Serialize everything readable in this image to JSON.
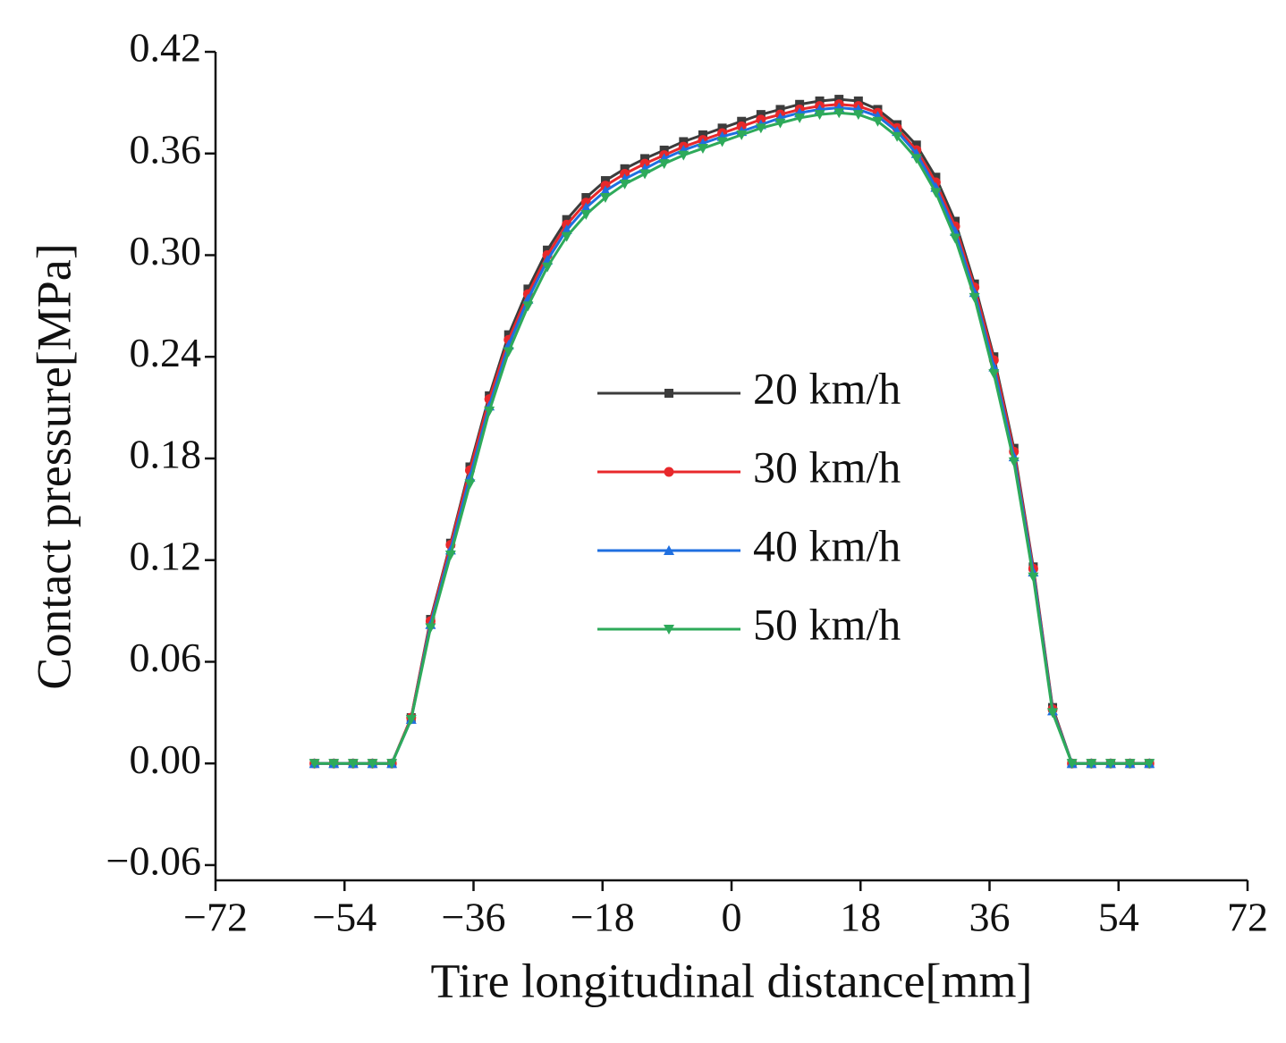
{
  "chart_data": {
    "type": "line",
    "xlabel": "Tire longitudinal distance[mm]",
    "ylabel": "Contact pressure[MPa]",
    "xlim": [
      -72,
      72
    ],
    "ylim": [
      -0.069,
      0.42
    ],
    "xticks": [
      {
        "value": -72,
        "label": "−72"
      },
      {
        "value": -54,
        "label": "−54"
      },
      {
        "value": -36,
        "label": "−36"
      },
      {
        "value": -18,
        "label": "−18"
      },
      0,
      18,
      36,
      54,
      72
    ],
    "yticks": [
      {
        "value": -0.06,
        "label": "−0.06"
      },
      {
        "value": 0,
        "label": "0.00"
      },
      0.06,
      0.12,
      0.18,
      0.24,
      {
        "value": 0.3,
        "label": "0.30"
      },
      0.36,
      0.42
    ],
    "x": [
      -58.2,
      -55.5,
      -52.8,
      -50.1,
      -47.4,
      -44.7,
      -42.0,
      -39.2,
      -36.5,
      -33.8,
      -31.1,
      -28.4,
      -25.7,
      -23.0,
      -20.3,
      -17.6,
      -14.9,
      -12.1,
      -9.4,
      -6.7,
      -4.0,
      -1.3,
      1.4,
      4.1,
      6.8,
      9.5,
      12.3,
      15.0,
      17.7,
      20.4,
      23.1,
      25.8,
      28.5,
      31.2,
      33.9,
      36.6,
      39.4,
      42.1,
      44.8,
      47.5,
      50.2,
      52.9,
      55.6,
      58.3
    ],
    "series": [
      {
        "name": "20 km/h",
        "color": "#3c3c3c",
        "marker": "square",
        "values": [
          0,
          0,
          0,
          0,
          0,
          0.027,
          0.085,
          0.13,
          0.175,
          0.217,
          0.253,
          0.28,
          0.303,
          0.321,
          0.334,
          0.344,
          0.351,
          0.357,
          0.362,
          0.367,
          0.371,
          0.375,
          0.379,
          0.383,
          0.386,
          0.389,
          0.391,
          0.392,
          0.391,
          0.386,
          0.377,
          0.365,
          0.346,
          0.32,
          0.283,
          0.24,
          0.186,
          0.116,
          0.033,
          0,
          0,
          0,
          0,
          0
        ]
      },
      {
        "name": "30 km/h",
        "color": "#e8282b",
        "marker": "circle",
        "values": [
          0,
          0,
          0,
          0,
          0,
          0.027,
          0.084,
          0.129,
          0.173,
          0.215,
          0.25,
          0.277,
          0.3,
          0.318,
          0.331,
          0.341,
          0.348,
          0.354,
          0.359,
          0.364,
          0.368,
          0.372,
          0.376,
          0.38,
          0.383,
          0.386,
          0.388,
          0.389,
          0.388,
          0.384,
          0.375,
          0.362,
          0.343,
          0.317,
          0.281,
          0.238,
          0.184,
          0.115,
          0.032,
          0,
          0,
          0,
          0,
          0
        ]
      },
      {
        "name": "40 km/h",
        "color": "#1f6fe0",
        "marker": "triangle-up",
        "values": [
          0,
          0,
          0,
          0,
          0,
          0.026,
          0.082,
          0.126,
          0.169,
          0.211,
          0.247,
          0.274,
          0.297,
          0.315,
          0.328,
          0.338,
          0.345,
          0.351,
          0.357,
          0.362,
          0.366,
          0.37,
          0.373,
          0.377,
          0.381,
          0.384,
          0.386,
          0.387,
          0.386,
          0.382,
          0.373,
          0.36,
          0.34,
          0.314,
          0.278,
          0.234,
          0.181,
          0.113,
          0.031,
          0,
          0,
          0,
          0,
          0
        ]
      },
      {
        "name": "50 km/h",
        "color": "#2eaa5a",
        "marker": "triangle-down",
        "values": [
          0,
          0,
          0,
          0,
          0,
          0.026,
          0.08,
          0.123,
          0.165,
          0.208,
          0.243,
          0.27,
          0.293,
          0.311,
          0.324,
          0.334,
          0.342,
          0.348,
          0.354,
          0.359,
          0.363,
          0.367,
          0.371,
          0.375,
          0.378,
          0.381,
          0.383,
          0.384,
          0.383,
          0.379,
          0.37,
          0.357,
          0.337,
          0.31,
          0.275,
          0.23,
          0.178,
          0.11,
          0.03,
          0,
          0,
          0,
          0,
          0
        ]
      }
    ]
  }
}
